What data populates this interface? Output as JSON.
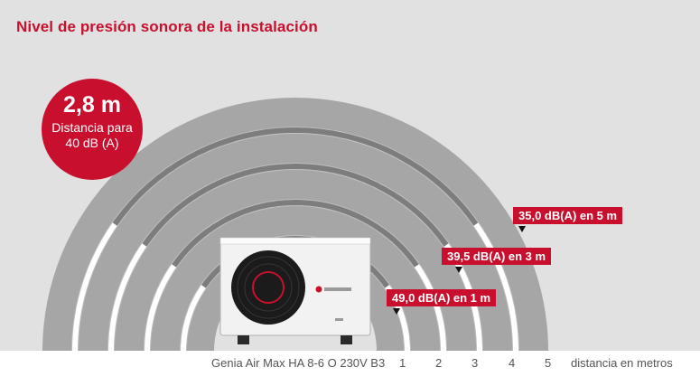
{
  "title": "Nivel de presión sonora de la instalación",
  "badge": {
    "value": "2,8 m",
    "text": "Distancia para 40 dB (A)",
    "color": "#c8102e"
  },
  "labels": [
    {
      "id": "5m",
      "text": "35,0 dB(A) en 5 m"
    },
    {
      "id": "3m",
      "text": "39,5 dB(A) en 3 m"
    },
    {
      "id": "1m",
      "text": "49,0 dB(A) en 1 m"
    }
  ],
  "footer": {
    "model": "Genia Air Max HA 8-6 O 230V B3",
    "ticks": [
      "1",
      "2",
      "3",
      "4",
      "5"
    ],
    "unit_label": "distancia en metros"
  },
  "colors": {
    "accent": "#c8102e",
    "panel": "#e1e1e2",
    "band_dark": "#a6a6a6",
    "band_light": "#bdbdbd",
    "ring": "#ffffff",
    "ring_highlight": "#7d7d7d"
  },
  "unit": {
    "brand_icon": "saunier-duval-logo-icon",
    "fan": "fan-grille-icon"
  }
}
